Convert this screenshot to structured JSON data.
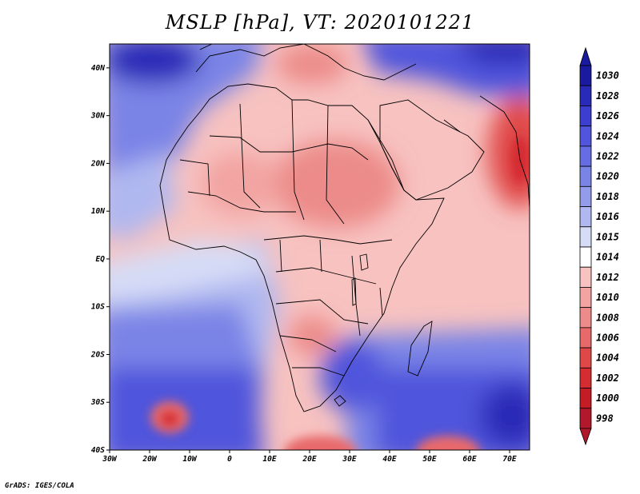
{
  "title": "MSLP [hPa], VT: 2020101221",
  "footer": "GrADS: IGES/COLA",
  "colors": {
    "low_strong": "#b2182b",
    "low": "#e8696a",
    "near_low": "#f7c2c0",
    "neutral": "#ffffff",
    "near_high": "#d6dcf6",
    "high": "#7a84e6",
    "high_strong": "#2a2ab8"
  },
  "map": {
    "lon_range": [
      -30,
      75
    ],
    "lat_range": [
      -40,
      45
    ],
    "lon_ticks": [
      "30W",
      "20W",
      "10W",
      "0",
      "10E",
      "20E",
      "30E",
      "40E",
      "50E",
      "60E",
      "70E"
    ],
    "lat_ticks": [
      "40N",
      "30N",
      "20N",
      "10N",
      "EQ",
      "10S",
      "20S",
      "30S",
      "40S"
    ]
  },
  "colorbar": {
    "labels": [
      "1030",
      "1028",
      "1026",
      "1024",
      "1022",
      "1020",
      "1018",
      "1016",
      "1015",
      "1014",
      "1012",
      "1010",
      "1008",
      "1006",
      "1004",
      "1002",
      "1000",
      "998"
    ],
    "colors": [
      "#1a1a9e",
      "#2a2ab8",
      "#3c3ed0",
      "#5055dc",
      "#666de2",
      "#7a84e6",
      "#929cea",
      "#b0b8f0",
      "#d6dcf6",
      "#ffffff",
      "#f7c2c0",
      "#f2a4a2",
      "#ec8b89",
      "#e8696a",
      "#e04848",
      "#d42c30",
      "#c41c24",
      "#b2182b"
    ]
  }
}
